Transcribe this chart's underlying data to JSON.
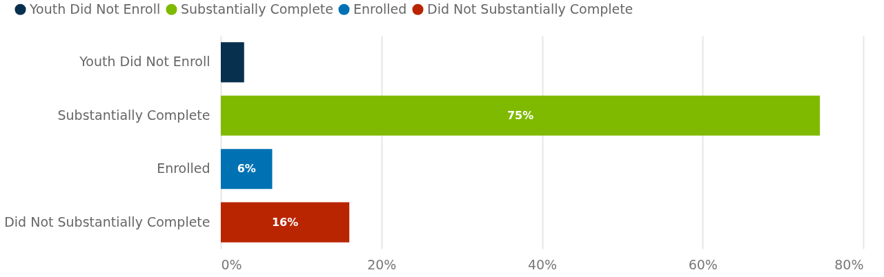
{
  "chart_data": {
    "type": "bar",
    "orientation": "horizontal",
    "categories": [
      "Youth Did Not Enroll",
      "Substantially Complete",
      "Enrolled",
      "Did Not Substantially Complete"
    ],
    "series": [
      {
        "name": "Youth Did Not Enroll",
        "color": "#07304f",
        "values": [
          2.9,
          null,
          null,
          null
        ],
        "value_labels": [
          null,
          null,
          null,
          null
        ]
      },
      {
        "name": "Substantially Complete",
        "color": "#7fba00",
        "values": [
          null,
          74.6,
          null,
          null
        ],
        "value_labels": [
          null,
          "75%",
          null,
          null
        ]
      },
      {
        "name": "Enrolled",
        "color": "#0072b4",
        "values": [
          null,
          null,
          6.4,
          null
        ],
        "value_labels": [
          null,
          null,
          "6%",
          null
        ]
      },
      {
        "name": "Did Not Substantially Complete",
        "color": "#b92500",
        "values": [
          null,
          null,
          null,
          16.0
        ],
        "value_labels": [
          null,
          null,
          null,
          "16%"
        ]
      }
    ],
    "xlim": [
      0,
      80
    ],
    "xticks": [
      {
        "value": 0,
        "label": "0%"
      },
      {
        "value": 20,
        "label": "20%"
      },
      {
        "value": 40,
        "label": "40%"
      },
      {
        "value": 60,
        "label": "60%"
      },
      {
        "value": 80,
        "label": "80%"
      }
    ],
    "grid": "x",
    "legend": "top left"
  }
}
